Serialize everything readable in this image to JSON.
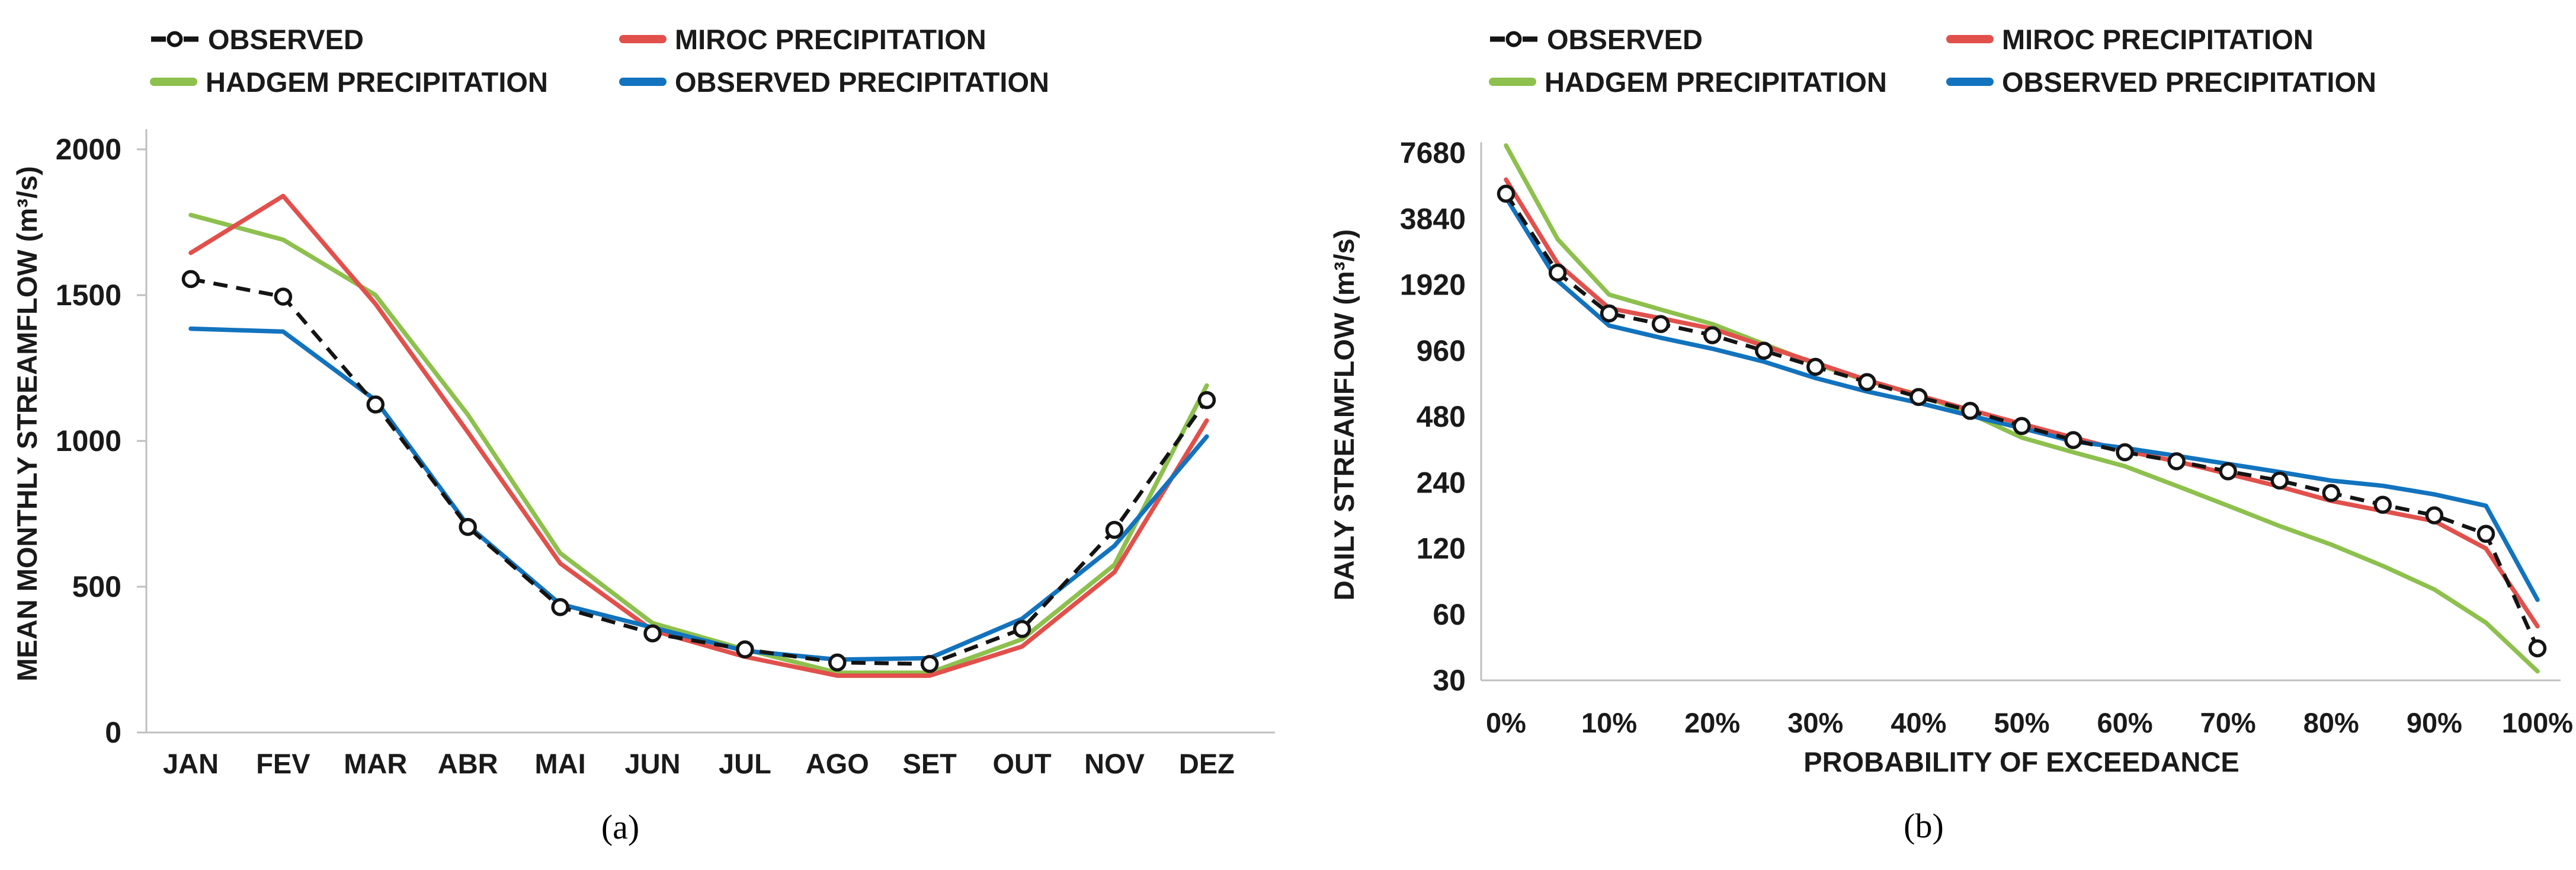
{
  "legend": {
    "observed": "OBSERVED",
    "miroc": "MIROC PRECIPITATION",
    "hadgem": "HADGEM PRECIPITATION",
    "obs_precip": "OBSERVED PRECIPITATION"
  },
  "colors": {
    "observed": "#141414",
    "miroc": "#E2504C",
    "hadgem": "#8DC04D",
    "obs_precip": "#1273BE",
    "axis": "#BFBFBF",
    "text": "#1A1A1A"
  },
  "captions": {
    "a": "(a)",
    "b": "(b)"
  },
  "chart_data": [
    {
      "id": "a",
      "type": "line",
      "title": "",
      "xlabel": "",
      "ylabel": "MEAN MONTHLY STREAMFLOW (m³/s)",
      "ylim": [
        0,
        2000
      ],
      "yticks": [
        2000,
        1500,
        1000,
        500,
        0
      ],
      "grid": false,
      "legend_position": "top",
      "categories": [
        "JAN",
        "FEV",
        "MAR",
        "ABR",
        "MAI",
        "JUN",
        "JUL",
        "AGO",
        "SET",
        "OUT",
        "NOV",
        "DEZ"
      ],
      "series": [
        {
          "name": "OBSERVED",
          "key": "observed",
          "style": "dashed-circle",
          "values": [
            1555,
            1495,
            1125,
            705,
            430,
            340,
            285,
            240,
            235,
            355,
            695,
            1140
          ]
        },
        {
          "name": "MIROC PRECIPITATION",
          "key": "miroc",
          "style": "solid",
          "values": [
            1645,
            1840,
            1470,
            1030,
            580,
            350,
            260,
            195,
            195,
            295,
            550,
            1070
          ]
        },
        {
          "name": "HADGEM PRECIPITATION",
          "key": "hadgem",
          "style": "solid",
          "values": [
            1775,
            1690,
            1500,
            1090,
            615,
            375,
            285,
            205,
            205,
            320,
            575,
            1190
          ]
        },
        {
          "name": "OBSERVED PRECIPITATION",
          "key": "obs_precip",
          "style": "solid",
          "values": [
            1385,
            1375,
            1140,
            710,
            440,
            360,
            280,
            250,
            255,
            390,
            640,
            1015
          ]
        }
      ]
    },
    {
      "id": "b",
      "type": "line",
      "title": "",
      "xlabel": "PROBABILITY OF EXCEEDANCE",
      "ylabel": "DAILY STREAMFLOW (m³/s)",
      "yscale": "log2",
      "ylim": [
        30,
        7680
      ],
      "yticks": [
        7680,
        3840,
        1920,
        960,
        480,
        240,
        120,
        60,
        30
      ],
      "grid": false,
      "legend_position": "top",
      "x": [
        0,
        5,
        10,
        15,
        20,
        25,
        30,
        35,
        40,
        45,
        50,
        55,
        60,
        65,
        70,
        75,
        80,
        85,
        90,
        95,
        100
      ],
      "xtick_labels": [
        "0%",
        "10%",
        "20%",
        "30%",
        "40%",
        "50%",
        "60%",
        "70%",
        "80%",
        "90%",
        "100%"
      ],
      "series": [
        {
          "name": "OBSERVED",
          "key": "observed",
          "style": "dashed-circle",
          "values": [
            5000,
            2180,
            1420,
            1270,
            1130,
            960,
            810,
            690,
            590,
            510,
            435,
            375,
            330,
            300,
            270,
            245,
            215,
            190,
            170,
            140,
            42
          ]
        },
        {
          "name": "MIROC PRECIPITATION",
          "key": "miroc",
          "style": "solid",
          "values": [
            5800,
            2400,
            1500,
            1350,
            1210,
            1010,
            845,
            705,
            600,
            515,
            445,
            385,
            335,
            300,
            263,
            230,
            198,
            178,
            160,
            120,
            53
          ]
        },
        {
          "name": "HADGEM PRECIPITATION",
          "key": "hadgem",
          "style": "solid",
          "values": [
            8300,
            3100,
            1730,
            1480,
            1270,
            1030,
            835,
            700,
            605,
            495,
            385,
            330,
            285,
            232,
            188,
            152,
            125,
            100,
            78,
            55,
            33
          ]
        },
        {
          "name": "OBSERVED PRECIPITATION",
          "key": "obs_precip",
          "style": "solid",
          "values": [
            4800,
            2000,
            1250,
            1100,
            980,
            855,
            720,
            625,
            555,
            485,
            425,
            370,
            345,
            318,
            292,
            268,
            245,
            232,
            212,
            188,
            70
          ]
        }
      ]
    }
  ]
}
